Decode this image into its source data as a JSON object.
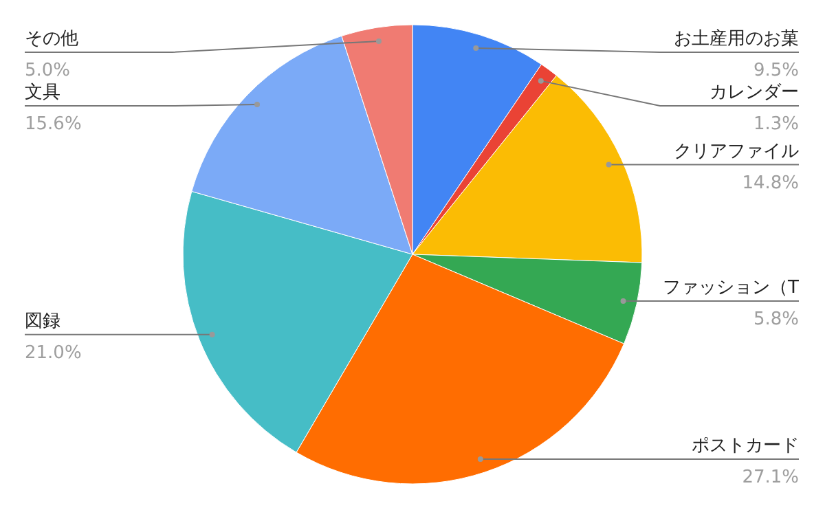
{
  "chart_data": {
    "type": "pie",
    "categories": [
      "お土産用のお菓",
      "カレンダー",
      "クリアファイル",
      "ファッション（T",
      "ポストカード",
      "図録",
      "文具",
      "その他"
    ],
    "values": [
      9.5,
      1.3,
      14.8,
      5.8,
      27.1,
      21.0,
      15.6,
      5.0
    ],
    "value_labels": [
      "9.5%",
      "1.3%",
      "14.8%",
      "5.8%",
      "27.1%",
      "21.0%",
      "15.6%",
      "5.0%"
    ],
    "colors": [
      "#4285f4",
      "#ea4335",
      "#fbbc04",
      "#34a853",
      "#ff6d01",
      "#46bdc6",
      "#7baaf7",
      "#f07b72"
    ],
    "legend": false
  }
}
